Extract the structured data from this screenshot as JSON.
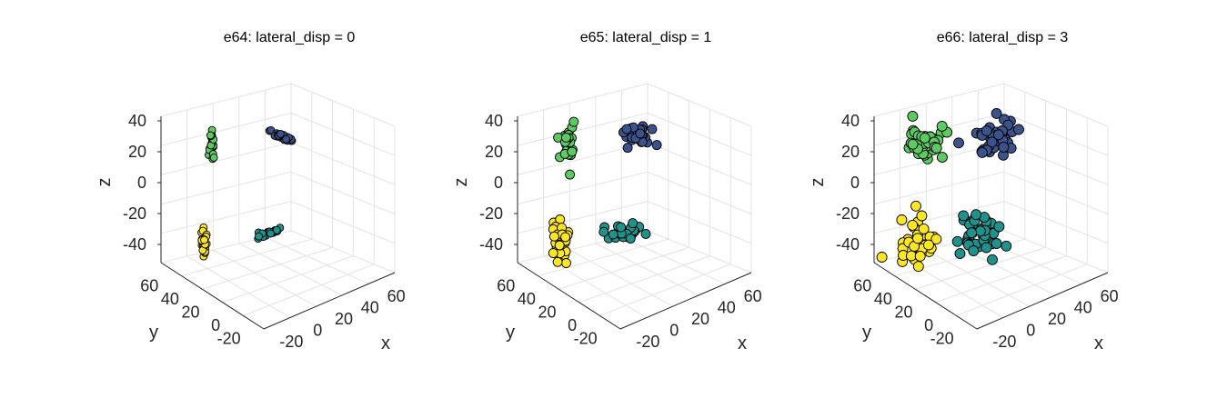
{
  "chart_data": [
    {
      "type": "scatter",
      "title": "e64: lateral_disp = 0",
      "xlabel": "x",
      "ylabel": "y",
      "zlabel": "z",
      "xticks": [
        "-20",
        "0",
        "20",
        "40",
        "60"
      ],
      "yticks": [
        "60",
        "40",
        "20",
        "0",
        "-20"
      ],
      "zticks": [
        "40",
        "20",
        "0",
        "-20",
        "-40"
      ],
      "xlim": [
        -35,
        65
      ],
      "ylim": [
        -35,
        65
      ],
      "zlim": [
        -50,
        45
      ],
      "grid": true,
      "series": [
        {
          "color": "#5ec962",
          "center": [
            -30,
            0,
            22
          ],
          "spread": [
            0.8,
            0.8,
            6
          ],
          "n": 22
        },
        {
          "color": "#3b528b",
          "center": [
            0,
            30,
            28
          ],
          "spread": [
            6,
            0.8,
            0.8
          ],
          "n": 28
        },
        {
          "color": "#21918c",
          "center": [
            25,
            0,
            -22
          ],
          "spread": [
            0.8,
            6,
            0.8
          ],
          "n": 24
        },
        {
          "color": "#fde725",
          "center": [
            0,
            -30,
            -28
          ],
          "spread": [
            0.8,
            0.8,
            6
          ],
          "n": 26
        }
      ]
    },
    {
      "type": "scatter",
      "title": "e65: lateral_disp = 1",
      "xlabel": "x",
      "ylabel": "y",
      "zlabel": "z",
      "xticks": [
        "-20",
        "0",
        "20",
        "40",
        "60"
      ],
      "yticks": [
        "60",
        "40",
        "20",
        "0",
        "-20"
      ],
      "zticks": [
        "40",
        "20",
        "0",
        "-20",
        "-40"
      ],
      "xlim": [
        -35,
        65
      ],
      "ylim": [
        -35,
        65
      ],
      "zlim": [
        -50,
        45
      ],
      "grid": true,
      "series": [
        {
          "color": "#5ec962",
          "center": [
            -30,
            0,
            22
          ],
          "spread": [
            2.5,
            2.5,
            6
          ],
          "n": 30
        },
        {
          "color": "#3b528b",
          "center": [
            0,
            30,
            28
          ],
          "spread": [
            6,
            2.5,
            2.5
          ],
          "n": 34
        },
        {
          "color": "#21918c",
          "center": [
            25,
            0,
            -22
          ],
          "spread": [
            2.5,
            6,
            2.5
          ],
          "n": 30
        },
        {
          "color": "#fde725",
          "center": [
            0,
            -30,
            -28
          ],
          "spread": [
            2.5,
            2.5,
            6
          ],
          "n": 34
        }
      ]
    },
    {
      "type": "scatter",
      "title": "e66: lateral_disp = 3",
      "xlabel": "x",
      "ylabel": "y",
      "zlabel": "z",
      "xticks": [
        "-20",
        "0",
        "20",
        "40",
        "60"
      ],
      "yticks": [
        "60",
        "40",
        "20",
        "0",
        "-20"
      ],
      "zticks": [
        "40",
        "20",
        "0",
        "-20",
        "-40"
      ],
      "xlim": [
        -35,
        65
      ],
      "ylim": [
        -35,
        65
      ],
      "zlim": [
        -50,
        45
      ],
      "grid": true,
      "series": [
        {
          "color": "#5ec962",
          "center": [
            -30,
            0,
            22
          ],
          "spread": [
            6,
            6,
            7
          ],
          "n": 40
        },
        {
          "color": "#3b528b",
          "center": [
            0,
            30,
            28
          ],
          "spread": [
            7,
            6,
            6
          ],
          "n": 40
        },
        {
          "color": "#21918c",
          "center": [
            25,
            0,
            -22
          ],
          "spread": [
            6,
            7,
            6
          ],
          "n": 40
        },
        {
          "color": "#fde725",
          "center": [
            0,
            -30,
            -28
          ],
          "spread": [
            6,
            6,
            7
          ],
          "n": 40
        }
      ]
    }
  ]
}
